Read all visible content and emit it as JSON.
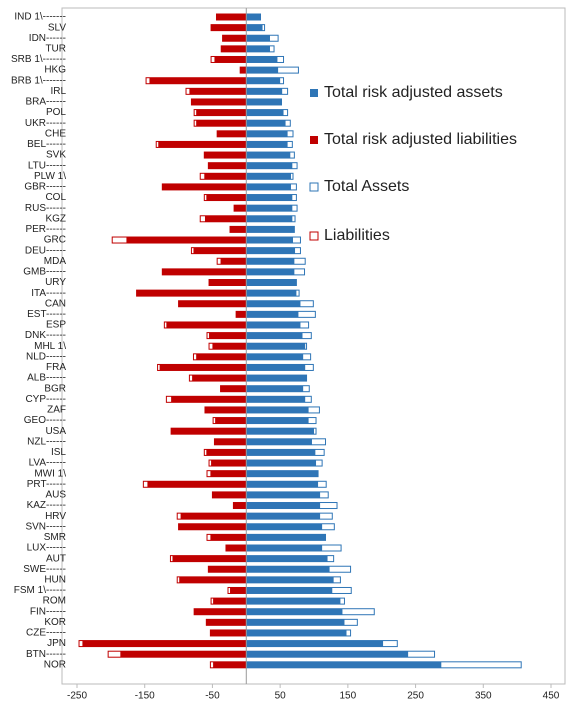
{
  "chart_data": {
    "type": "diverging-bar",
    "categories": [
      "IND 1\\-------",
      "SLV",
      "IDN------",
      "TUR",
      "SRB 1\\-------",
      "HKG",
      "BRB 1\\-------",
      "IRL",
      "BRA------",
      "POL",
      "UKR------",
      "CHE",
      "BEL------",
      "SVK",
      "LTU------",
      "PLW 1\\",
      "GBR------",
      "COL",
      "RUS------",
      "KGZ",
      "PER------",
      "GRC",
      "DEU------",
      "MDA",
      "GMB------",
      "URY",
      "ITA------",
      "CAN",
      "EST------",
      "ESP",
      "DNK------",
      "MHL 1\\",
      "NLD------",
      "FRA",
      "ALB------",
      "BGR",
      "CYP------",
      "ZAF",
      "GEO------",
      "USA",
      "NZL------",
      "ISL",
      "LVA------",
      "MWI 1\\",
      "PRT------",
      "AUS",
      "KAZ------",
      "HRV",
      "SVN------",
      "SMR",
      "LUX------",
      "AUT",
      "SWE------",
      "HUN",
      "FSM 1\\------",
      "ROM",
      "FIN------",
      "KOR",
      "CZE------",
      "JPN",
      "BTN------",
      "NOR"
    ],
    "series": [
      {
        "name": "Total risk adjusted assets",
        "color": "#2e75b6",
        "style": "solid",
        "values": [
          21,
          24,
          35,
          35,
          46,
          47,
          50,
          53,
          52,
          55,
          58,
          61,
          61,
          65,
          68,
          66,
          66,
          68,
          68,
          68,
          71,
          69,
          72,
          71,
          71,
          74,
          74,
          80,
          77,
          80,
          83,
          87,
          84,
          87,
          89,
          84,
          87,
          92,
          92,
          100,
          97,
          102,
          103,
          106,
          106,
          109,
          109,
          109,
          112,
          117,
          112,
          120,
          123,
          129,
          127,
          139,
          142,
          145,
          148,
          202,
          239,
          288
        ]
      },
      {
        "name": "Total risk adjusted liabilities",
        "color": "#c00000",
        "style": "solid",
        "values": [
          -44,
          -52,
          -35,
          -37,
          -47,
          -9,
          -143,
          -84,
          -81,
          -74,
          -74,
          -43,
          -130,
          -62,
          -56,
          -62,
          -124,
          -59,
          -18,
          -61,
          -24,
          -177,
          -78,
          -38,
          -124,
          -55,
          -162,
          -100,
          -15,
          -118,
          -55,
          -50,
          -74,
          -128,
          -80,
          -38,
          -111,
          -61,
          -46,
          -111,
          -47,
          -59,
          -52,
          -53,
          -146,
          -50,
          -19,
          -97,
          -100,
          -53,
          -30,
          -109,
          -56,
          -99,
          -24,
          -49,
          -77,
          -59,
          -53,
          -242,
          -186,
          -49
        ]
      },
      {
        "name": "Total Assets",
        "color": "#2e75b6",
        "style": "outline",
        "values": [
          21,
          27,
          47,
          41,
          55,
          77,
          55,
          61,
          52,
          61,
          65,
          69,
          68,
          71,
          75,
          69,
          74,
          74,
          75,
          72,
          71,
          80,
          80,
          87,
          86,
          74,
          78,
          99,
          102,
          92,
          96,
          89,
          95,
          99,
          89,
          93,
          96,
          108,
          103,
          103,
          117,
          115,
          112,
          106,
          118,
          121,
          134,
          127,
          130,
          117,
          140,
          129,
          154,
          139,
          155,
          145,
          189,
          164,
          154,
          223,
          278,
          406
        ]
      },
      {
        "name": "Liabilities",
        "color": "#c00000",
        "style": "outline",
        "values": [
          -44,
          -52,
          -35,
          -37,
          -52,
          -9,
          -148,
          -89,
          -81,
          -77,
          -77,
          -43,
          -133,
          -62,
          -56,
          -68,
          -124,
          -62,
          -18,
          -68,
          -24,
          -198,
          -81,
          -43,
          -124,
          -55,
          -162,
          -100,
          -15,
          -121,
          -58,
          -55,
          -78,
          -131,
          -84,
          -38,
          -118,
          -61,
          -49,
          -111,
          -47,
          -62,
          -55,
          -58,
          -152,
          -50,
          -19,
          -102,
          -100,
          -58,
          -30,
          -112,
          -56,
          -102,
          -27,
          -52,
          -77,
          -59,
          -53,
          -247,
          -204,
          -53
        ]
      }
    ],
    "xlim": [
      -250,
      450
    ],
    "xticks": [
      -250,
      -150,
      -50,
      50,
      150,
      250,
      350,
      450
    ]
  }
}
